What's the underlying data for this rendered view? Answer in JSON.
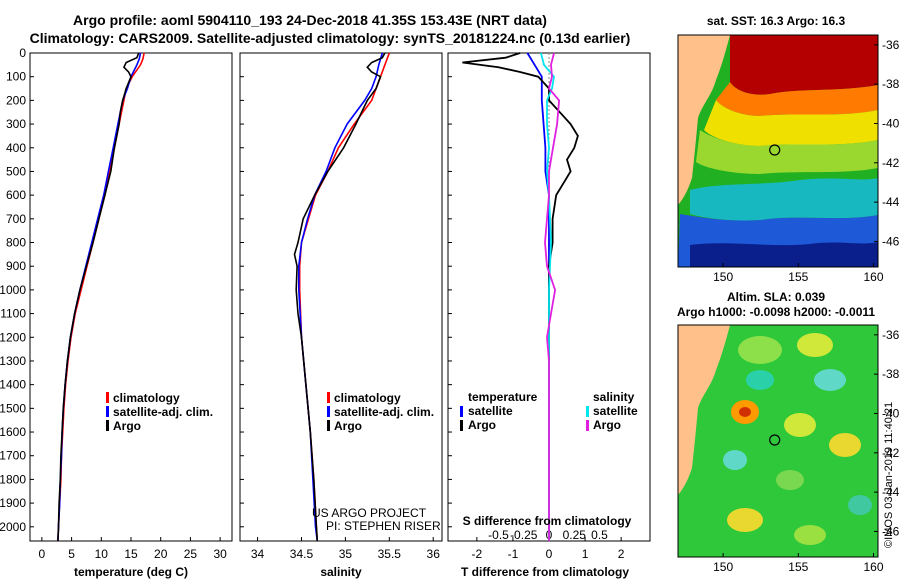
{
  "title": {
    "line1": "Argo profile: aoml 5904110_193 24-Dec-2018 41.35S 153.43E (NRT data)",
    "line2": "Climatology: CARS2009. Satellite-adjusted climatology: synTS_20181224.nc (0.13d earlier)"
  },
  "colors": {
    "climatology": "#ff0000",
    "satellite": "#0000ff",
    "argo": "#000000",
    "sat_salinity": "#00e5ee",
    "salinity": "#e020e0"
  },
  "chart_data": [
    {
      "id": "temperature",
      "type": "line",
      "xlabel": "temperature (deg C)",
      "xlim": [
        -2,
        32
      ],
      "ylim": [
        2060,
        0
      ],
      "xticks": [
        "0",
        "5",
        "10",
        "15",
        "20",
        "25",
        "30"
      ],
      "xtick_values": [
        0,
        5,
        10,
        15,
        20,
        25,
        30
      ],
      "yticks": [
        "0",
        "100",
        "200",
        "300",
        "400",
        "500",
        "600",
        "700",
        "800",
        "900",
        "1000",
        "1100",
        "1200",
        "1300",
        "1400",
        "1500",
        "1600",
        "1700",
        "1800",
        "1900",
        "2000"
      ],
      "ytick_values": [
        0,
        100,
        200,
        300,
        400,
        500,
        600,
        700,
        800,
        900,
        1000,
        1100,
        1200,
        1300,
        1400,
        1500,
        1600,
        1700,
        1800,
        1900,
        2000
      ],
      "legend": [
        "climatology",
        "satellite-adj. clim.",
        "Argo"
      ],
      "series": [
        {
          "name": "climatology",
          "depth": [
            0,
            25,
            50,
            100,
            150,
            200,
            300,
            400,
            500,
            600,
            700,
            800,
            900,
            1000,
            1100,
            1200,
            1300,
            1400,
            1500,
            1600,
            1700,
            1800,
            1900,
            2000,
            2060
          ],
          "values": [
            17.2,
            17.0,
            16.6,
            15.2,
            14.2,
            13.8,
            13.0,
            12.2,
            11.4,
            10.6,
            9.6,
            8.6,
            7.6,
            6.6,
            5.6,
            4.9,
            4.4,
            4.0,
            3.7,
            3.5,
            3.3,
            3.2,
            3.0,
            2.8,
            2.7
          ]
        },
        {
          "name": "satellite-adj. clim.",
          "depth": [
            0,
            25,
            50,
            100,
            150,
            200,
            300,
            400,
            500,
            600,
            700,
            800,
            900,
            1000,
            1100,
            1200,
            1300,
            1400,
            1500,
            1600,
            1700,
            1800,
            1900,
            2000,
            2060
          ],
          "values": [
            16.6,
            16.4,
            16.0,
            15.0,
            14.4,
            13.6,
            12.8,
            12.0,
            11.2,
            10.4,
            9.4,
            8.4,
            7.4,
            6.4,
            5.5,
            4.8,
            4.3,
            3.9,
            3.6,
            3.4,
            3.3,
            3.1,
            3.0,
            2.8,
            2.7
          ]
        },
        {
          "name": "Argo",
          "depth": [
            0,
            20,
            40,
            60,
            80,
            100,
            150,
            200,
            250,
            300,
            400,
            500,
            600,
            700,
            800,
            900,
            1000,
            1100,
            1200,
            1300,
            1400,
            1500,
            1600,
            1700,
            1800,
            1900,
            2000,
            2060
          ],
          "values": [
            16.3,
            16.0,
            14.2,
            13.8,
            14.6,
            15.0,
            14.2,
            13.6,
            13.2,
            13.0,
            12.2,
            11.6,
            10.6,
            9.6,
            8.6,
            7.5,
            6.4,
            5.5,
            4.8,
            4.3,
            3.9,
            3.6,
            3.4,
            3.2,
            3.1,
            2.9,
            2.8,
            2.7
          ]
        }
      ]
    },
    {
      "id": "salinity",
      "type": "line",
      "xlabel": "salinity",
      "xlim": [
        33.8,
        36.1
      ],
      "ylim": [
        2060,
        0
      ],
      "xticks": [
        "34",
        "34.5",
        "35",
        "35.5",
        "36"
      ],
      "xtick_values": [
        34,
        34.5,
        35,
        35.5,
        36
      ],
      "legend": [
        "climatology",
        "satellite-adj. clim.",
        "Argo"
      ],
      "series": [
        {
          "name": "climatology",
          "depth": [
            0,
            50,
            100,
            150,
            200,
            300,
            400,
            500,
            600,
            700,
            800,
            900,
            1000,
            1200,
            1400,
            1600,
            1800,
            2000,
            2060
          ],
          "values": [
            35.5,
            35.45,
            35.4,
            35.35,
            35.3,
            35.1,
            34.92,
            34.8,
            34.66,
            34.58,
            34.5,
            34.48,
            34.48,
            34.5,
            34.55,
            34.6,
            34.64,
            34.67,
            34.68
          ]
        },
        {
          "name": "satellite-adj. clim.",
          "depth": [
            0,
            50,
            100,
            150,
            200,
            300,
            400,
            500,
            600,
            700,
            800,
            900,
            1000,
            1200,
            1400,
            1600,
            1800,
            2000,
            2060
          ],
          "values": [
            35.42,
            35.38,
            35.35,
            35.3,
            35.22,
            35.02,
            34.88,
            34.78,
            34.65,
            34.57,
            34.5,
            34.47,
            34.47,
            34.5,
            34.55,
            34.6,
            34.63,
            34.66,
            34.68
          ]
        },
        {
          "name": "Argo",
          "depth": [
            0,
            20,
            40,
            60,
            80,
            100,
            150,
            200,
            300,
            400,
            500,
            600,
            700,
            800,
            850,
            900,
            1000,
            1100,
            1200,
            1400,
            1600,
            1800,
            2000,
            2060
          ],
          "values": [
            35.45,
            35.42,
            35.3,
            35.25,
            35.3,
            35.4,
            35.35,
            35.25,
            35.12,
            34.98,
            34.8,
            34.65,
            34.52,
            34.46,
            34.42,
            34.45,
            34.44,
            34.46,
            34.5,
            34.55,
            34.6,
            34.64,
            34.67,
            34.68
          ]
        }
      ]
    },
    {
      "id": "difference",
      "type": "line",
      "xlabel": "T difference from climatology",
      "xlim": [
        -2.8,
        2.8
      ],
      "ylim": [
        2060,
        0
      ],
      "xticks": [
        "-2",
        "-1",
        "0",
        "1",
        "2"
      ],
      "xtick_values": [
        -2,
        -1,
        0,
        1,
        2
      ],
      "s_xlabel": "S difference from climatology",
      "s_xticks": [
        "-0.5",
        "-0.25",
        "0",
        "0.25",
        "0.5"
      ],
      "s_xtick_values": [
        -0.5,
        -0.25,
        0,
        0.25,
        0.5
      ],
      "legend_left": {
        "title": "temperature",
        "items": [
          "satellite",
          "Argo"
        ]
      },
      "legend_right": {
        "title": "salinity",
        "items": [
          "satellite",
          "Argo"
        ]
      },
      "series": [
        {
          "name": "temperature satellite",
          "depth": [
            0,
            50,
            100,
            200,
            300,
            400,
            500,
            600,
            800,
            1000,
            1500,
            2000,
            2060
          ],
          "values": [
            -0.6,
            -0.4,
            -0.2,
            -0.2,
            -0.15,
            -0.1,
            -0.1,
            0,
            0,
            0,
            0,
            0,
            0
          ]
        },
        {
          "name": "temperature Argo",
          "depth": [
            0,
            20,
            40,
            60,
            80,
            100,
            150,
            200,
            250,
            300,
            350,
            400,
            450,
            500,
            550,
            600,
            700,
            800,
            900,
            1000,
            1200,
            1400,
            1600,
            1800,
            2000,
            2060
          ],
          "values": [
            -0.8,
            -1.2,
            -2.4,
            -1.4,
            -0.8,
            -0.3,
            0,
            0,
            0.3,
            0.6,
            0.8,
            0.7,
            0.5,
            0.6,
            0.4,
            0.2,
            0.1,
            0.1,
            0,
            0,
            0,
            0,
            0,
            0,
            0,
            0
          ]
        },
        {
          "name": "salinity satellite",
          "depth": [
            0,
            50,
            100,
            150,
            200,
            300,
            400,
            500,
            600,
            800,
            1000,
            1500,
            2000,
            2060
          ],
          "values": [
            -0.08,
            -0.05,
            0.05,
            0.03,
            -0.02,
            -0.02,
            0,
            -0.02,
            0,
            0.02,
            0,
            0,
            0,
            0
          ]
        },
        {
          "name": "salinity Argo",
          "depth": [
            0,
            50,
            100,
            150,
            200,
            300,
            400,
            500,
            600,
            700,
            800,
            900,
            1000,
            1100,
            1200,
            1300,
            1400,
            1500,
            1600,
            2000,
            2060
          ],
          "values": [
            0.05,
            0.02,
            0.03,
            0,
            0.1,
            0.08,
            0.04,
            0,
            0,
            -0.02,
            -0.04,
            -0.02,
            0.06,
            0.02,
            -0.02,
            0,
            0,
            0,
            0,
            0,
            0
          ]
        }
      ]
    }
  ],
  "credits": {
    "line1": "US ARGO PROJECT",
    "line2": "PI: STEPHEN RISER"
  },
  "maps": {
    "sst": {
      "title": "sat. SST: 16.3 Argo: 16.3",
      "lat_ticks": [
        "-36",
        "-38",
        "-40",
        "-42",
        "-44",
        "-46"
      ],
      "lat_values": [
        -36,
        -38,
        -40,
        -42,
        -44,
        -46
      ],
      "lon_ticks": [
        "150",
        "155",
        "160"
      ],
      "lon_values": [
        150,
        155,
        160
      ],
      "lon_range": [
        147,
        160.3
      ],
      "lat_range": [
        -35.5,
        -47.3
      ]
    },
    "sla": {
      "title_line1": "Altim. SLA: 0.039",
      "title_line2": "Argo h1000: -0.0098 h2000: -0.0011",
      "lat_ticks": [
        "-36",
        "-38",
        "-40",
        "-42",
        "-44",
        "-46"
      ],
      "lat_values": [
        -36,
        -38,
        -40,
        -42,
        -44,
        -46
      ],
      "lon_ticks": [
        "150",
        "155",
        "160"
      ],
      "lon_values": [
        150,
        155,
        160
      ],
      "lon_range": [
        147,
        160.3
      ],
      "lat_range": [
        -35.5,
        -47.3
      ]
    },
    "argo_position": {
      "lon": 153.43,
      "lat": -41.35
    }
  },
  "stamp": "©IMOS 03-Jan-2019 11:40:21"
}
